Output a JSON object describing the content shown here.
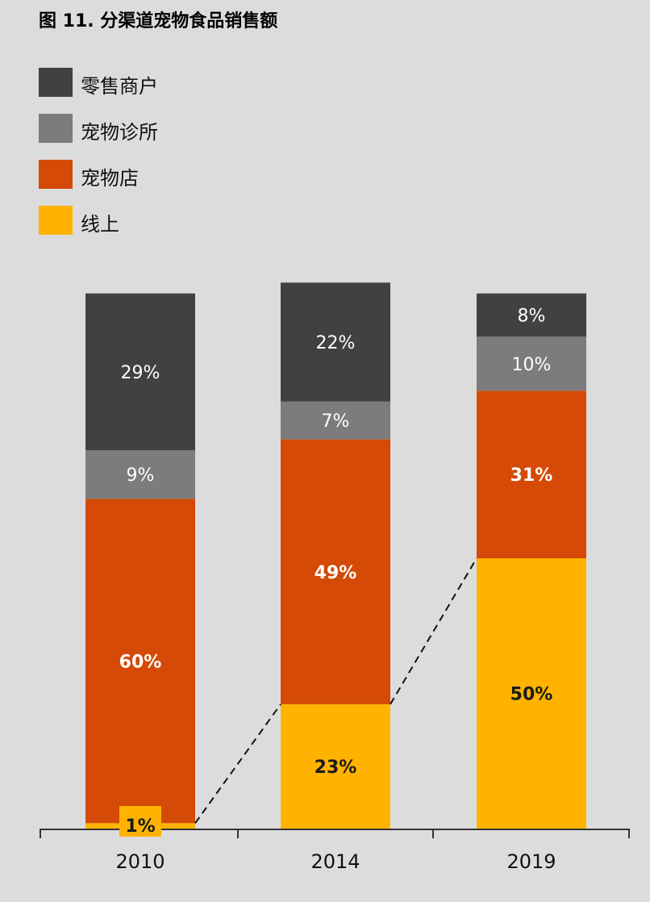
{
  "title": "图 11. 分渠道宠物食品销售额",
  "colors": {
    "retail": "#424142",
    "clinic": "#7d7c7c",
    "petstore": "#d44a06",
    "online": "#ffb300",
    "background": "#dddcdd"
  },
  "legend": [
    {
      "label": "零售商户",
      "color": "#424142"
    },
    {
      "label": "宠物诊所",
      "color": "#7d7c7c"
    },
    {
      "label": "宠物店",
      "color": "#d44a06"
    },
    {
      "label": "线上",
      "color": "#ffb300"
    }
  ],
  "chart_data": {
    "type": "bar",
    "stacked": true,
    "categories": [
      "2010",
      "2014",
      "2019"
    ],
    "series": [
      {
        "name": "线上",
        "color": "#ffb300",
        "label_color": "#1a1a1a",
        "values": [
          1,
          23,
          50
        ],
        "labels": [
          "1%",
          "23%",
          "50%"
        ]
      },
      {
        "name": "宠物店",
        "color": "#d44a06",
        "label_color": "#ffffff",
        "values": [
          60,
          49,
          31
        ],
        "labels": [
          "60%",
          "49%",
          "31%"
        ]
      },
      {
        "name": "宠物诊所",
        "color": "#7d7c7c",
        "label_color": "#ffffff",
        "values": [
          9,
          7,
          10
        ],
        "labels": [
          "9%",
          "7%",
          "10%"
        ]
      },
      {
        "name": "零售商户",
        "color": "#424142",
        "label_color": "#ffffff",
        "values": [
          29,
          22,
          8
        ],
        "labels": [
          "29%",
          "22%",
          "8%"
        ]
      }
    ],
    "ylim": [
      0,
      100
    ],
    "trend_line": "dashed line connecting top of 线上 segments",
    "legend_position": "top-left",
    "grid": false
  }
}
